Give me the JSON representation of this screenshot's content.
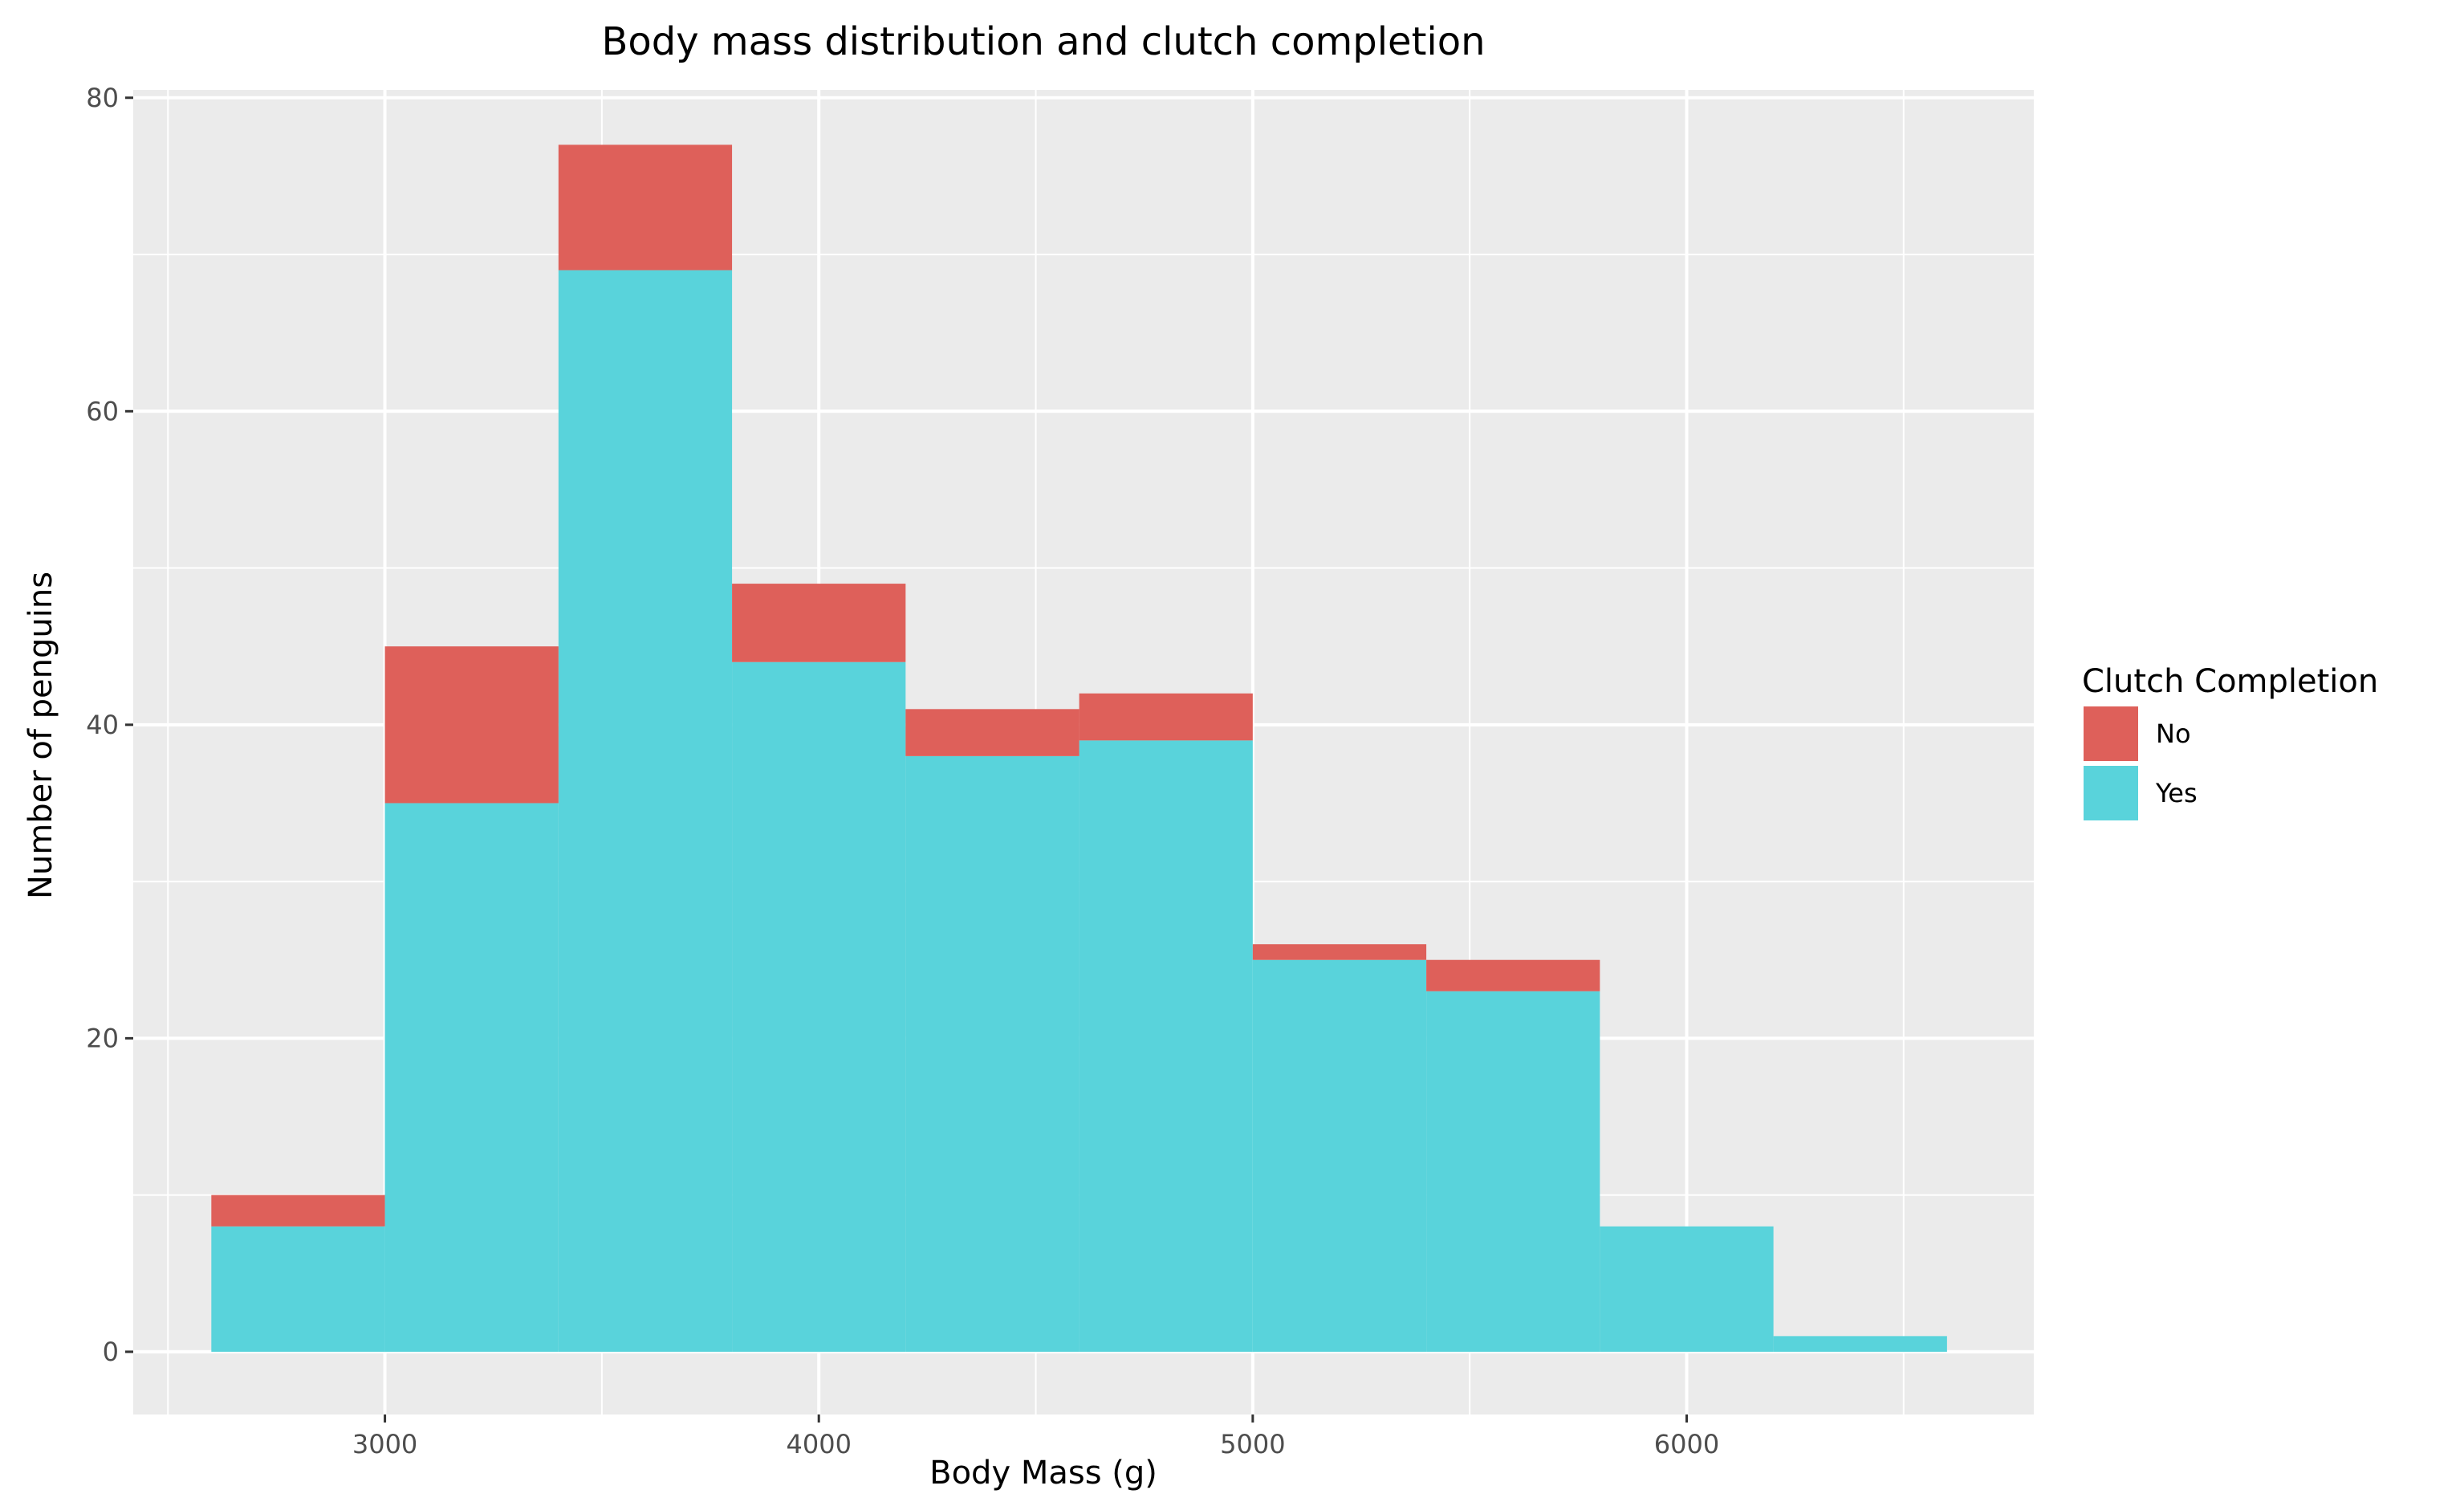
{
  "chart_data": {
    "type": "bar",
    "stacked": true,
    "title": "Body mass distribution and clutch completion",
    "xlabel": "Body Mass (g)",
    "ylabel": "Number of penguins",
    "xlim": [
      2420,
      6800
    ],
    "ylim": [
      -4,
      80.5
    ],
    "xticks": [
      3000,
      4000,
      5000,
      6000
    ],
    "yticks": [
      0,
      20,
      40,
      60,
      80
    ],
    "x_minor_gridlines": [
      2500,
      3500,
      4500,
      5500,
      6500
    ],
    "y_minor_gridlines": [
      10,
      30,
      50,
      70
    ],
    "grid": true,
    "bin_width": 400,
    "bins": [
      2800,
      3200,
      3600,
      4000,
      4400,
      4800,
      5200,
      5600,
      6000,
      6400
    ],
    "series": [
      {
        "name": "Yes",
        "color": "#59D3DB",
        "values": [
          8,
          35,
          69,
          44,
          38,
          39,
          25,
          23,
          8,
          1
        ]
      },
      {
        "name": "No",
        "color": "#DE605A",
        "values": [
          2,
          10,
          8,
          5,
          3,
          3,
          1,
          2,
          0,
          0
        ]
      }
    ],
    "legend": {
      "title": "Clutch Completion",
      "placement": "right",
      "entries": [
        {
          "label": "No",
          "color": "#DE605A"
        },
        {
          "label": "Yes",
          "color": "#59D3DB"
        }
      ]
    },
    "panel_color": "#EBEBEB",
    "grid_color": "#FFFFFF"
  }
}
